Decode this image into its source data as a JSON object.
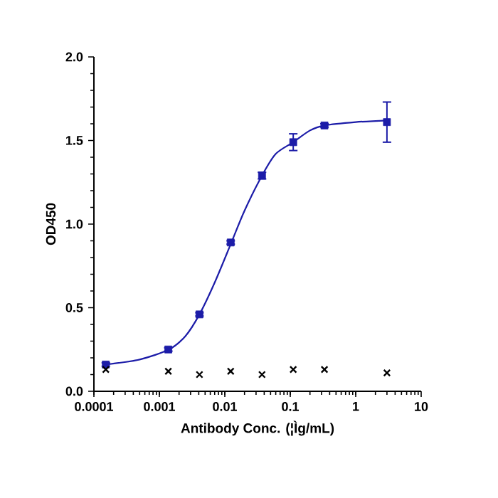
{
  "chart_data": {
    "type": "scatter",
    "xlabel": "Antibody Conc. (¦Ìg/mL)",
    "ylabel": "OD450",
    "log": "x",
    "xlim": [
      0.0001,
      10
    ],
    "ylim": [
      0,
      2
    ],
    "xticks": [
      {
        "value": 0.0001,
        "label": "0.0001"
      },
      {
        "value": 0.001,
        "label": "0.001"
      },
      {
        "value": 0.01,
        "label": "0.01"
      },
      {
        "value": 0.1,
        "label": "0.1"
      },
      {
        "value": 1,
        "label": "1"
      },
      {
        "value": 10,
        "label": "10"
      }
    ],
    "yticks": [
      {
        "value": 0,
        "label": "0.0"
      },
      {
        "value": 0.5,
        "label": "0.5"
      },
      {
        "value": 1,
        "label": "1.0"
      },
      {
        "value": 1.5,
        "label": "1.5"
      },
      {
        "value": 2,
        "label": "2.0"
      }
    ],
    "grid": false,
    "series": [
      {
        "color": "#1c1ca8",
        "marker": "square",
        "x": [
          0.000152,
          0.00137,
          0.0041,
          0.0123,
          0.037,
          0.111,
          0.333,
          3
        ],
        "values": [
          0.16,
          0.25,
          0.46,
          0.89,
          1.29,
          1.49,
          1.59,
          1.61
        ],
        "errors": [
          0.01,
          0.01,
          0.01,
          0.01,
          0.02,
          0.05,
          0.01,
          0.12
        ]
      },
      {
        "type": "line",
        "color": "#1c1ca8",
        "marker": "none",
        "x": [
          0.00015,
          0.0005,
          0.0014,
          0.0025,
          0.0041,
          0.007,
          0.0126,
          0.02,
          0.037,
          0.06,
          0.111,
          0.2,
          0.333,
          1,
          3
        ],
        "values": [
          0.16,
          0.19,
          0.25,
          0.33,
          0.46,
          0.65,
          0.89,
          1.08,
          1.29,
          1.42,
          1.49,
          1.56,
          1.59,
          1.61,
          1.62
        ]
      },
      {
        "color": "#000000",
        "marker": "cross",
        "x": [
          0.000152,
          0.00137,
          0.0041,
          0.0123,
          0.037,
          0.111,
          0.333,
          3
        ],
        "values": [
          0.13,
          0.12,
          0.1,
          0.12,
          0.1,
          0.13,
          0.13,
          0.11
        ]
      }
    ]
  }
}
